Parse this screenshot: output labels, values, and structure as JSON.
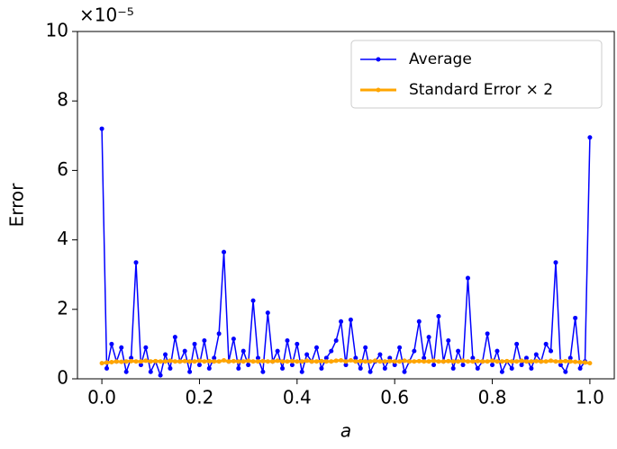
{
  "chart_data": {
    "type": "line",
    "xlabel": "a",
    "ylabel": "Error",
    "y_offset_label": "×10⁻⁵",
    "x": [
      0,
      0.01,
      0.02,
      0.03,
      0.04,
      0.05,
      0.06,
      0.07,
      0.08,
      0.09,
      0.1,
      0.11,
      0.12,
      0.13,
      0.14,
      0.15,
      0.16,
      0.17,
      0.18,
      0.19,
      0.2,
      0.21,
      0.22,
      0.23,
      0.24,
      0.25,
      0.26,
      0.27,
      0.28,
      0.29,
      0.3,
      0.31,
      0.32,
      0.33,
      0.34,
      0.35,
      0.36,
      0.37,
      0.38,
      0.39,
      0.4,
      0.41,
      0.42,
      0.43,
      0.44,
      0.45,
      0.46,
      0.47,
      0.48,
      0.49,
      0.5,
      0.51,
      0.52,
      0.53,
      0.54,
      0.55,
      0.56,
      0.57,
      0.58,
      0.59,
      0.6,
      0.61,
      0.62,
      0.63,
      0.64,
      0.65,
      0.66,
      0.67,
      0.68,
      0.69,
      0.7,
      0.71,
      0.72,
      0.73,
      0.74,
      0.75,
      0.76,
      0.77,
      0.78,
      0.79,
      0.8,
      0.81,
      0.82,
      0.83,
      0.84,
      0.85,
      0.86,
      0.87,
      0.88,
      0.89,
      0.9,
      0.91,
      0.92,
      0.93,
      0.94,
      0.95,
      0.96,
      0.97,
      0.98,
      0.99,
      1
    ],
    "series": [
      {
        "name": "Average",
        "color": "#0000ff",
        "values": [
          7.2,
          0.3,
          1.0,
          0.5,
          0.9,
          0.2,
          0.6,
          3.35,
          0.4,
          0.9,
          0.2,
          0.5,
          0.1,
          0.7,
          0.3,
          1.2,
          0.5,
          0.8,
          0.2,
          1.0,
          0.4,
          1.1,
          0.3,
          0.6,
          1.3,
          3.65,
          0.5,
          1.15,
          0.3,
          0.8,
          0.4,
          2.25,
          0.6,
          0.2,
          1.9,
          0.5,
          0.8,
          0.3,
          1.1,
          0.4,
          1.0,
          0.2,
          0.7,
          0.5,
          0.9,
          0.3,
          0.6,
          0.8,
          1.1,
          1.65,
          0.4,
          1.7,
          0.6,
          0.3,
          0.9,
          0.2,
          0.5,
          0.7,
          0.3,
          0.6,
          0.4,
          0.9,
          0.2,
          0.5,
          0.8,
          1.65,
          0.6,
          1.2,
          0.4,
          1.8,
          0.5,
          1.1,
          0.3,
          0.8,
          0.4,
          2.9,
          0.6,
          0.3,
          0.5,
          1.3,
          0.4,
          0.8,
          0.2,
          0.5,
          0.3,
          1.0,
          0.4,
          0.6,
          0.3,
          0.7,
          0.5,
          1.0,
          0.8,
          3.35,
          0.4,
          0.2,
          0.6,
          1.75,
          0.3,
          0.5,
          6.95
        ]
      },
      {
        "name": "Standard Error × 2",
        "color": "#ffa500",
        "values": [
          0.45,
          0.47,
          0.48,
          0.5,
          0.49,
          0.5,
          0.51,
          0.5,
          0.5,
          0.52,
          0.5,
          0.51,
          0.5,
          0.5,
          0.52,
          0.5,
          0.5,
          0.51,
          0.5,
          0.5,
          0.52,
          0.5,
          0.51,
          0.5,
          0.5,
          0.53,
          0.5,
          0.51,
          0.5,
          0.5,
          0.52,
          0.5,
          0.5,
          0.51,
          0.5,
          0.5,
          0.52,
          0.5,
          0.5,
          0.51,
          0.5,
          0.5,
          0.52,
          0.5,
          0.5,
          0.51,
          0.5,
          0.5,
          0.52,
          0.53,
          0.5,
          0.53,
          0.5,
          0.51,
          0.5,
          0.5,
          0.52,
          0.5,
          0.5,
          0.51,
          0.5,
          0.5,
          0.52,
          0.5,
          0.5,
          0.51,
          0.5,
          0.5,
          0.52,
          0.5,
          0.5,
          0.51,
          0.5,
          0.5,
          0.52,
          0.5,
          0.5,
          0.51,
          0.5,
          0.5,
          0.52,
          0.5,
          0.5,
          0.51,
          0.5,
          0.5,
          0.52,
          0.5,
          0.5,
          0.51,
          0.5,
          0.5,
          0.52,
          0.5,
          0.5,
          0.51,
          0.5,
          0.49,
          0.48,
          0.47,
          0.45
        ]
      }
    ],
    "xlim": [
      -0.05,
      1.05
    ],
    "ylim": [
      0,
      10
    ],
    "xticks": [
      {
        "value": 0,
        "label": "0.0"
      },
      0.2,
      0.4,
      0.6,
      0.8,
      {
        "value": 1,
        "label": "1.0"
      }
    ],
    "yticks": [
      0,
      2,
      4,
      6,
      8,
      10
    ],
    "legend": "upper right"
  }
}
